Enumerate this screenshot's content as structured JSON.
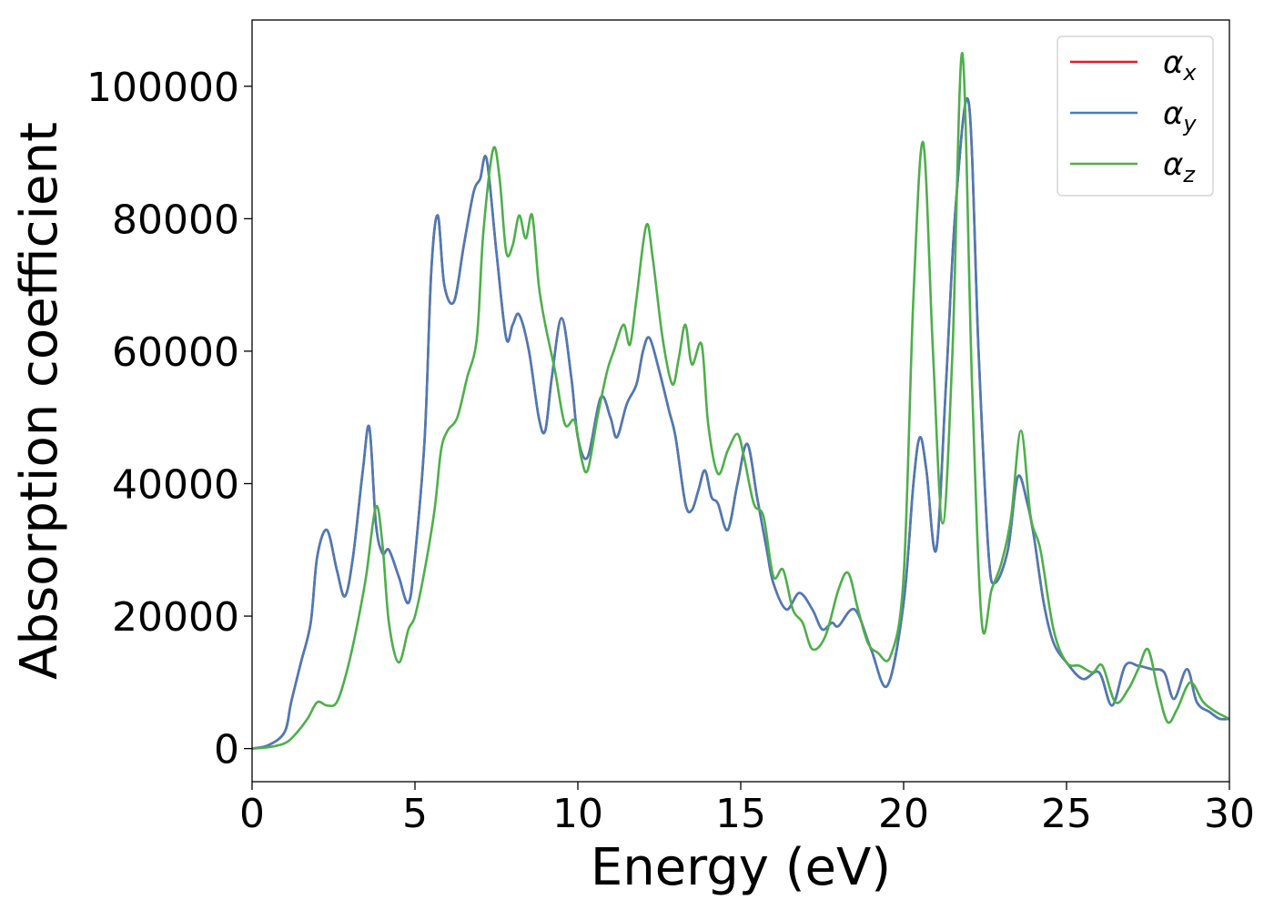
{
  "chart_data": {
    "type": "line",
    "xlabel": "Energy (eV)",
    "ylabel": "Absorption coefficient",
    "xlim": [
      0,
      30
    ],
    "ylim": [
      -5000,
      110000
    ],
    "xticks": [
      0,
      5,
      10,
      15,
      20,
      25,
      30
    ],
    "yticks": [
      0,
      20000,
      40000,
      60000,
      80000,
      100000
    ],
    "xtick_labels": [
      "0",
      "5",
      "10",
      "15",
      "20",
      "25",
      "30"
    ],
    "ytick_labels": [
      "0",
      "20000",
      "40000",
      "60000",
      "80000",
      "100000"
    ],
    "grid": false,
    "legend_position": "top-right",
    "series": [
      {
        "name": "α",
        "sub": "x",
        "color": "#e41a1c",
        "x": [
          0,
          0.5,
          1.0,
          1.2,
          1.5,
          1.8,
          2.0,
          2.3,
          2.6,
          2.85,
          3.1,
          3.4,
          3.6,
          3.8,
          4.0,
          4.2,
          4.5,
          4.8,
          5.0,
          5.3,
          5.5,
          5.7,
          5.9,
          6.2,
          6.5,
          6.8,
          7.0,
          7.2,
          7.5,
          7.8,
          8.0,
          8.2,
          8.5,
          8.8,
          9.0,
          9.2,
          9.5,
          9.8,
          10.0,
          10.3,
          10.7,
          11.0,
          11.2,
          11.5,
          11.8,
          12.0,
          12.2,
          12.5,
          12.8,
          13.0,
          13.3,
          13.5,
          13.7,
          13.9,
          14.1,
          14.3,
          14.6,
          14.9,
          15.2,
          15.5,
          15.8,
          16.0,
          16.4,
          16.8,
          17.2,
          17.5,
          17.8,
          18.0,
          18.5,
          19.0,
          19.5,
          20.0,
          20.3,
          20.5,
          20.7,
          21.0,
          21.3,
          21.6,
          22.0,
          22.3,
          22.6,
          22.8,
          23.2,
          23.5,
          23.8,
          24.0,
          24.3,
          24.6,
          25.0,
          25.5,
          26.0,
          26.4,
          26.8,
          27.2,
          27.6,
          28.0,
          28.3,
          28.7,
          29.0,
          29.4,
          29.7,
          30.0
        ],
        "y": [
          0,
          500,
          2500,
          7000,
          13000,
          19000,
          29000,
          33000,
          27000,
          23000,
          29000,
          42000,
          48500,
          34000,
          29500,
          30000,
          26000,
          22000,
          29000,
          47000,
          72000,
          80500,
          70000,
          67500,
          76000,
          84000,
          86000,
          89000,
          75000,
          62000,
          64000,
          65500,
          60000,
          50000,
          48000,
          56000,
          65000,
          56000,
          47000,
          44000,
          53000,
          50000,
          47000,
          52000,
          55000,
          60000,
          62000,
          57000,
          51000,
          47000,
          37000,
          36000,
          39000,
          42000,
          38000,
          37000,
          33000,
          40000,
          46000,
          38000,
          30000,
          25000,
          21000,
          23500,
          21000,
          18000,
          19000,
          18500,
          21000,
          15000,
          9500,
          22000,
          40000,
          47000,
          42000,
          30000,
          55000,
          82000,
          97500,
          60000,
          30000,
          25000,
          30000,
          41000,
          37000,
          32000,
          22000,
          16000,
          13000,
          10500,
          11500,
          6500,
          12500,
          12500,
          12000,
          11500,
          7500,
          12000,
          7000,
          5500,
          4500,
          4500
        ]
      },
      {
        "name": "α",
        "sub": "y",
        "color": "#4a7bb7",
        "x": [
          0,
          0.5,
          1.0,
          1.2,
          1.5,
          1.8,
          2.0,
          2.3,
          2.6,
          2.85,
          3.1,
          3.4,
          3.6,
          3.8,
          4.0,
          4.2,
          4.5,
          4.8,
          5.0,
          5.3,
          5.5,
          5.7,
          5.9,
          6.2,
          6.5,
          6.8,
          7.0,
          7.2,
          7.5,
          7.8,
          8.0,
          8.2,
          8.5,
          8.8,
          9.0,
          9.2,
          9.5,
          9.8,
          10.0,
          10.3,
          10.7,
          11.0,
          11.2,
          11.5,
          11.8,
          12.0,
          12.2,
          12.5,
          12.8,
          13.0,
          13.3,
          13.5,
          13.7,
          13.9,
          14.1,
          14.3,
          14.6,
          14.9,
          15.2,
          15.5,
          15.8,
          16.0,
          16.4,
          16.8,
          17.2,
          17.5,
          17.8,
          18.0,
          18.5,
          19.0,
          19.5,
          20.0,
          20.3,
          20.5,
          20.7,
          21.0,
          21.3,
          21.6,
          22.0,
          22.3,
          22.6,
          22.8,
          23.2,
          23.5,
          23.8,
          24.0,
          24.3,
          24.6,
          25.0,
          25.5,
          26.0,
          26.4,
          26.8,
          27.2,
          27.6,
          28.0,
          28.3,
          28.7,
          29.0,
          29.4,
          29.7,
          30.0
        ],
        "y": [
          0,
          500,
          2500,
          7000,
          13000,
          19000,
          29000,
          33000,
          27000,
          23000,
          29000,
          42000,
          48500,
          34000,
          29500,
          30000,
          26000,
          22000,
          29000,
          47000,
          72000,
          80500,
          70000,
          67500,
          76000,
          84000,
          86000,
          89000,
          75000,
          62000,
          64000,
          65500,
          60000,
          50000,
          48000,
          56000,
          65000,
          56000,
          47000,
          44000,
          53000,
          50000,
          47000,
          52000,
          55000,
          60000,
          62000,
          57000,
          51000,
          47000,
          37000,
          36000,
          39000,
          42000,
          38000,
          37000,
          33000,
          40000,
          46000,
          38000,
          30000,
          25000,
          21000,
          23500,
          21000,
          18000,
          19000,
          18500,
          21000,
          15000,
          9500,
          22000,
          40000,
          47000,
          42000,
          30000,
          55000,
          82000,
          97500,
          60000,
          30000,
          25000,
          30000,
          41000,
          37000,
          32000,
          22000,
          16000,
          13000,
          10500,
          11500,
          6500,
          12500,
          12500,
          12000,
          11500,
          7500,
          12000,
          7000,
          5500,
          4500,
          4500
        ]
      },
      {
        "name": "α",
        "sub": "z",
        "color": "#4daf4a",
        "x": [
          0,
          0.5,
          1.0,
          1.3,
          1.7,
          2.0,
          2.3,
          2.6,
          2.9,
          3.2,
          3.5,
          3.8,
          4.0,
          4.2,
          4.5,
          4.8,
          5.0,
          5.3,
          5.6,
          5.8,
          6.0,
          6.3,
          6.6,
          6.9,
          7.1,
          7.4,
          7.6,
          7.8,
          8.0,
          8.2,
          8.4,
          8.6,
          8.8,
          9.0,
          9.3,
          9.6,
          9.9,
          10.1,
          10.3,
          10.6,
          10.9,
          11.1,
          11.4,
          11.6,
          11.8,
          12.1,
          12.3,
          12.6,
          12.9,
          13.1,
          13.3,
          13.5,
          13.8,
          14.0,
          14.3,
          14.6,
          14.9,
          15.1,
          15.4,
          15.7,
          16.0,
          16.3,
          16.6,
          16.9,
          17.2,
          17.6,
          18.0,
          18.3,
          18.6,
          18.9,
          19.2,
          19.6,
          20.0,
          20.3,
          20.6,
          20.9,
          21.2,
          21.5,
          21.8,
          22.1,
          22.4,
          22.7,
          23.0,
          23.3,
          23.6,
          23.9,
          24.2,
          24.6,
          25.0,
          25.4,
          25.8,
          26.1,
          26.5,
          26.9,
          27.2,
          27.5,
          27.8,
          28.1,
          28.4,
          28.8,
          29.2,
          29.6,
          30.0
        ],
        "y": [
          0,
          200,
          800,
          2000,
          4500,
          7000,
          6500,
          7000,
          11500,
          18000,
          26000,
          36500,
          31000,
          19000,
          13000,
          18000,
          20000,
          27000,
          36000,
          45000,
          48000,
          50000,
          56000,
          62000,
          78000,
          90500,
          86000,
          75000,
          76000,
          80500,
          77000,
          80500,
          70000,
          64000,
          57000,
          49000,
          49500,
          44000,
          42000,
          50000,
          57000,
          60000,
          64000,
          61000,
          68000,
          79000,
          74000,
          62000,
          55000,
          59000,
          64000,
          58000,
          61000,
          49000,
          41500,
          45000,
          47500,
          44000,
          37000,
          35000,
          26000,
          27000,
          21000,
          19000,
          15000,
          17000,
          24000,
          26500,
          21000,
          16000,
          14500,
          14000,
          26000,
          68000,
          91500,
          60000,
          34000,
          60000,
          105000,
          55000,
          19000,
          24000,
          28000,
          35000,
          48000,
          35000,
          30000,
          18000,
          13000,
          12500,
          11500,
          12500,
          7000,
          9000,
          12000,
          15000,
          9000,
          4000,
          6000,
          10000,
          7000,
          5500,
          4500
        ]
      }
    ]
  }
}
